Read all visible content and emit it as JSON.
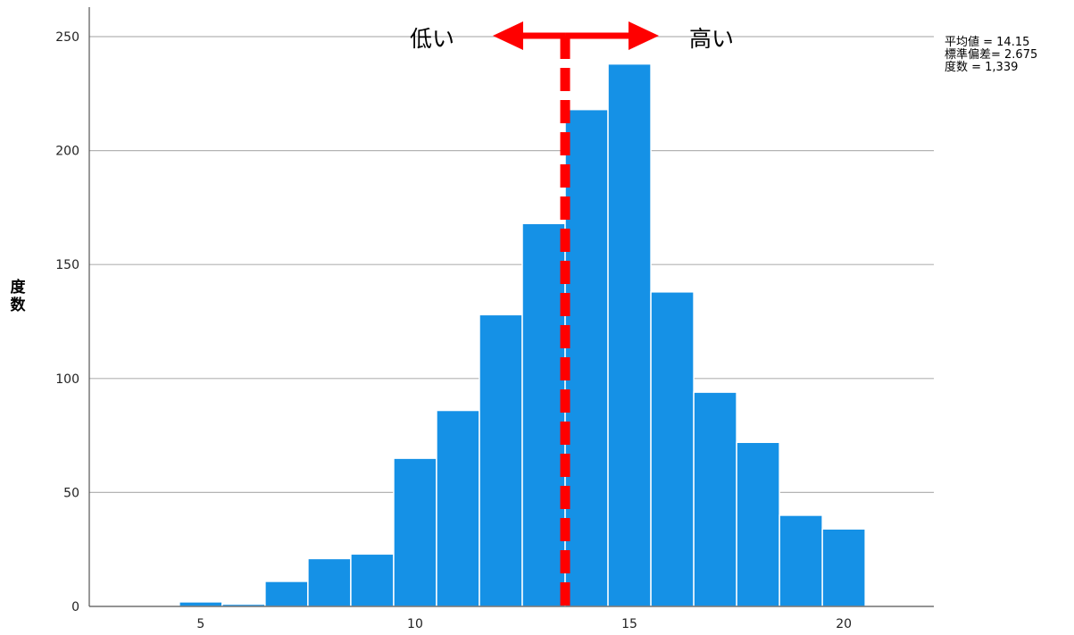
{
  "chart_data": {
    "type": "bar",
    "bin_centers": [
      5,
      6,
      7,
      8,
      9,
      10,
      11,
      12,
      13,
      14,
      15,
      16,
      17,
      18,
      19,
      20
    ],
    "values": [
      2,
      1,
      11,
      21,
      23,
      65,
      86,
      128,
      168,
      218,
      238,
      138,
      94,
      72,
      40,
      34
    ],
    "xticks": [
      "5",
      "10",
      "15",
      "20"
    ],
    "xtick_values": [
      5,
      10,
      15,
      20
    ],
    "yticks": [
      "0",
      "50",
      "100",
      "150",
      "200",
      "250"
    ],
    "ytick_values": [
      0,
      50,
      100,
      150,
      200,
      250
    ],
    "xlim": [
      2.4,
      22.1
    ],
    "ylim": [
      0,
      250
    ],
    "ylabel": "度数",
    "grid": true,
    "bar_color": "#1591e6",
    "divider": {
      "x_value": 13.5,
      "color": "#ff0000",
      "left_label": "低い",
      "right_label": "高い"
    },
    "stats": {
      "mean": "平均値 = 14.15",
      "sd": "標準偏差= 2.675",
      "n": "度数 = 1,339"
    }
  }
}
